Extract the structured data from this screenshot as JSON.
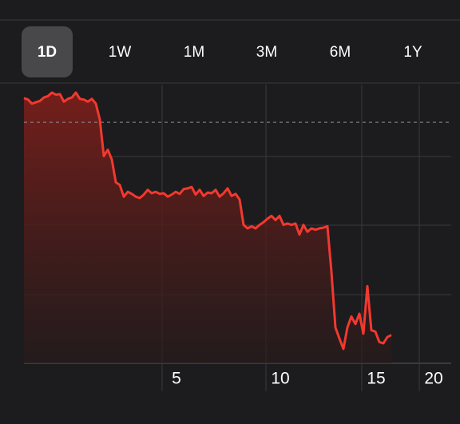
{
  "tabs": [
    "1D",
    "1W",
    "1M",
    "3M",
    "6M",
    "1Y"
  ],
  "selected_tab": 0,
  "chart_data": {
    "type": "line",
    "color": "#f2392f",
    "values": [
      3.85,
      3.83,
      3.77,
      3.79,
      3.81,
      3.86,
      3.88,
      3.93,
      3.9,
      3.91,
      3.8,
      3.84,
      3.86,
      3.93,
      3.84,
      3.83,
      3.8,
      3.84,
      3.77,
      3.54,
      3.01,
      3.1,
      2.96,
      2.63,
      2.59,
      2.42,
      2.49,
      2.46,
      2.42,
      2.4,
      2.45,
      2.52,
      2.47,
      2.49,
      2.46,
      2.47,
      2.42,
      2.45,
      2.49,
      2.46,
      2.53,
      2.54,
      2.56,
      2.45,
      2.52,
      2.43,
      2.48,
      2.47,
      2.52,
      2.42,
      2.47,
      2.54,
      2.43,
      2.46,
      2.38,
      2.01,
      1.96,
      1.99,
      1.96,
      2.01,
      2.05,
      2.1,
      2.14,
      2.08,
      2.14,
      2.01,
      2.03,
      2.01,
      2.03,
      1.87,
      2.01,
      1.91,
      1.96,
      1.94,
      1.96,
      1.97,
      1.99,
      1.33,
      0.52,
      0.36,
      0.21,
      0.52,
      0.68,
      0.57,
      0.72,
      0.43,
      1.12,
      0.48,
      0.46,
      0.31,
      0.29,
      0.38,
      0.41
    ],
    "reference_line": 3.5,
    "xlim": [
      0,
      107
    ],
    "ylim": [
      0,
      4
    ],
    "xticks": [
      {
        "value": 34.6,
        "label": "5"
      },
      {
        "value": 60.6,
        "label": "10"
      },
      {
        "value": 84.6,
        "label": "15"
      },
      {
        "value": 99,
        "label": "20"
      }
    ]
  }
}
